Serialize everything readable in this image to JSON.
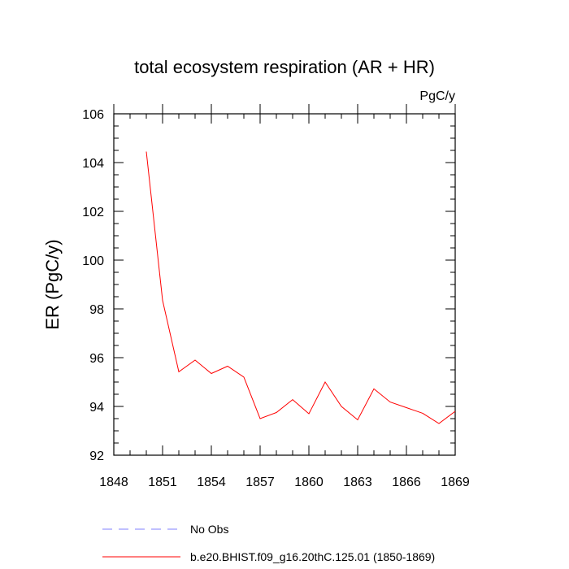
{
  "chart_data": {
    "type": "line",
    "title": "total ecosystem respiration (AR + HR)",
    "units": "PgC/y",
    "xlabel": "",
    "ylabel": "ER  (PgC/y)",
    "xlim": [
      1848,
      1869
    ],
    "ylim": [
      92,
      106
    ],
    "xticks": [
      1848,
      1851,
      1854,
      1857,
      1860,
      1863,
      1866,
      1869
    ],
    "yticks": [
      92,
      94,
      96,
      98,
      100,
      102,
      104,
      106
    ],
    "grid": false,
    "legend_position": "bottom-left",
    "series": [
      {
        "name": "No Obs",
        "color": "#8080ff",
        "dash": "dashed",
        "x": [],
        "values": []
      },
      {
        "name": "b.e20.BHIST.f09_g16.20thC.125.01 (1850-1869)",
        "color": "#ff0000",
        "dash": "solid",
        "x": [
          1850,
          1851,
          1852,
          1853,
          1854,
          1855,
          1856,
          1857,
          1858,
          1859,
          1860,
          1861,
          1862,
          1863,
          1864,
          1865,
          1866,
          1867,
          1868,
          1869
        ],
        "values": [
          104.45,
          98.35,
          95.42,
          95.9,
          95.35,
          95.65,
          95.2,
          93.5,
          93.75,
          94.28,
          93.7,
          95.0,
          94.0,
          93.45,
          94.72,
          94.18,
          93.95,
          93.72,
          93.3,
          93.8
        ]
      }
    ]
  }
}
